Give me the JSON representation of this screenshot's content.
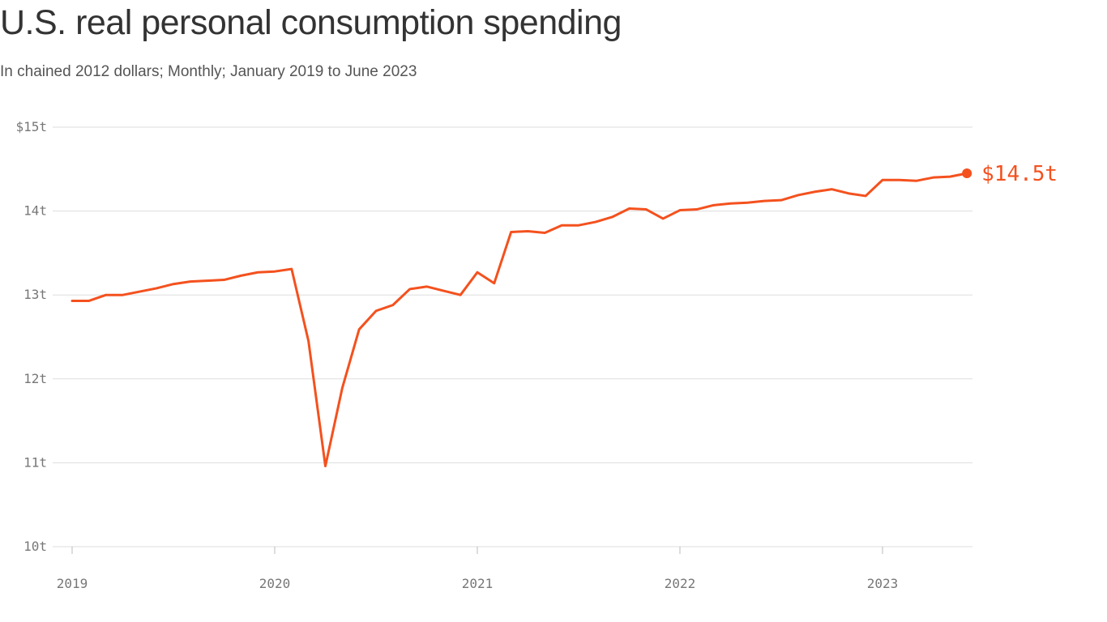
{
  "title": "U.S. real personal consumption spending",
  "subtitle": "In chained 2012 dollars; Monthly; January 2019 to June 2023",
  "colors": {
    "line": "#f4511e",
    "grid": "#dddddd",
    "axis_text": "#777777"
  },
  "chart_data": {
    "type": "line",
    "title": "U.S. real personal consumption spending",
    "subtitle": "In chained 2012 dollars; Monthly; January 2019 to June 2023",
    "xlabel": "",
    "ylabel": "",
    "ylim": [
      10,
      15
    ],
    "y_ticks": [
      10,
      11,
      12,
      13,
      14,
      15
    ],
    "y_tick_labels": [
      "10t",
      "11t",
      "12t",
      "13t",
      "14t",
      "$15t"
    ],
    "x_ticks": [
      "2019-01",
      "2020-01",
      "2021-01",
      "2022-01",
      "2023-01"
    ],
    "x_tick_labels": [
      "2019",
      "2020",
      "2021",
      "2022",
      "2023"
    ],
    "grid": true,
    "end_label": "$14.5t",
    "series": [
      {
        "x": [
          "2019-01",
          "2019-02",
          "2019-03",
          "2019-04",
          "2019-05",
          "2019-06",
          "2019-07",
          "2019-08",
          "2019-09",
          "2019-10",
          "2019-11",
          "2019-12",
          "2020-01",
          "2020-02",
          "2020-03",
          "2020-04",
          "2020-05",
          "2020-06",
          "2020-07",
          "2020-08",
          "2020-09",
          "2020-10",
          "2020-11",
          "2020-12",
          "2021-01",
          "2021-02",
          "2021-03",
          "2021-04",
          "2021-05",
          "2021-06",
          "2021-07",
          "2021-08",
          "2021-09",
          "2021-10",
          "2021-11",
          "2021-12",
          "2022-01",
          "2022-02",
          "2022-03",
          "2022-04",
          "2022-05",
          "2022-06",
          "2022-07",
          "2022-08",
          "2022-09",
          "2022-10",
          "2022-11",
          "2022-12",
          "2023-01",
          "2023-02",
          "2023-03",
          "2023-04",
          "2023-05",
          "2023-06"
        ],
        "values": [
          12.93,
          12.93,
          13.0,
          13.0,
          13.04,
          13.08,
          13.13,
          13.16,
          13.17,
          13.18,
          13.23,
          13.27,
          13.28,
          13.31,
          12.45,
          10.96,
          11.89,
          12.59,
          12.81,
          12.88,
          13.07,
          13.1,
          13.05,
          13.0,
          13.27,
          13.14,
          13.75,
          13.76,
          13.74,
          13.83,
          13.83,
          13.87,
          13.93,
          14.03,
          14.02,
          13.91,
          14.01,
          14.02,
          14.07,
          14.09,
          14.1,
          14.12,
          14.13,
          14.19,
          14.23,
          14.26,
          14.21,
          14.18,
          14.37,
          14.37,
          14.36,
          14.4,
          14.41,
          14.45
        ]
      }
    ]
  }
}
